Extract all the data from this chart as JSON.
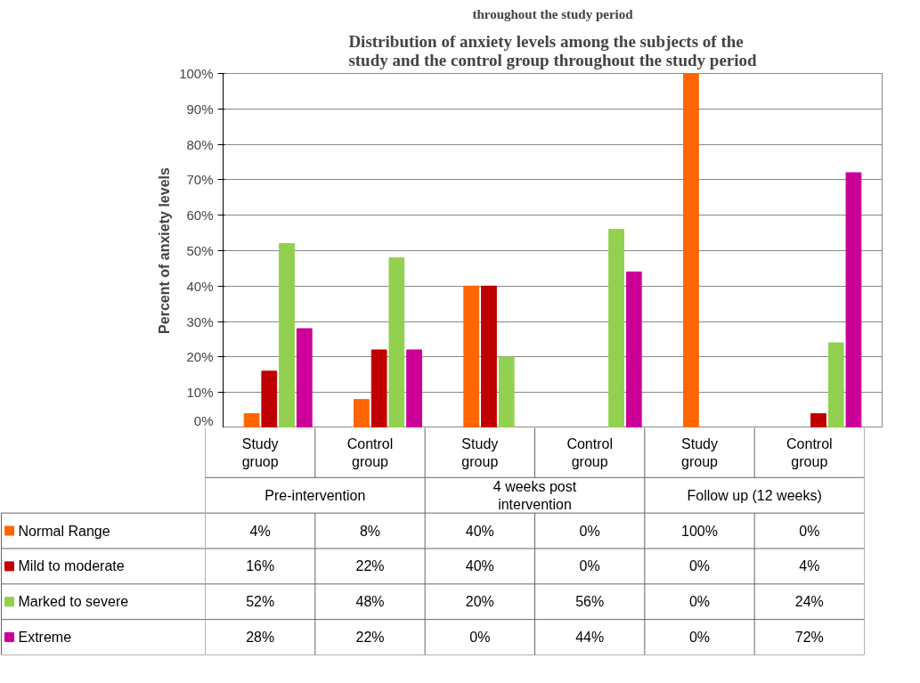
{
  "chart_data": {
    "type": "bar",
    "title": "Distribution of anxiety levels among the subjects of the study and the control group throughout the study period",
    "subtitle": "throughout the study period",
    "annotations": [
      "Pre-intervention",
      "4 weeks post intervention",
      "Follow up (12 weeks)"
    ],
    "categories": [
      "Study gruop",
      "Control group",
      "Study group",
      "Control group",
      "Study group",
      "Control group"
    ],
    "ylabel": "Percent of anxiety levels",
    "ylim": [
      0,
      100
    ],
    "yticks": [
      {
        "value": 0,
        "label": "0%"
      },
      {
        "value": 10,
        "label": "10%"
      },
      {
        "value": 20,
        "label": "20%"
      },
      {
        "value": 30,
        "label": "30%"
      },
      {
        "value": 40,
        "label": "40%"
      },
      {
        "value": 50,
        "label": "50%"
      },
      {
        "value": 60,
        "label": "60%"
      },
      {
        "value": 70,
        "label": "70%"
      },
      {
        "value": 80,
        "label": "80%"
      },
      {
        "value": 90,
        "label": "90%"
      },
      {
        "value": 100,
        "label": "100%"
      }
    ],
    "grid": "y",
    "legend": "bottom",
    "series": [
      {
        "name": "Normal Range",
        "color": "#ff6600",
        "values": [
          4,
          8,
          40,
          0,
          100,
          0
        ],
        "value_labels": [
          "4%",
          "8%",
          "40%",
          "0%",
          "100%",
          "0%"
        ]
      },
      {
        "name": "Mild to moderate",
        "color": "#c00000",
        "values": [
          16,
          22,
          40,
          0,
          0,
          4
        ],
        "value_labels": [
          "16%",
          "22%",
          "40%",
          "0%",
          "0%",
          "4%"
        ]
      },
      {
        "name": "Marked to severe",
        "color": "#92d050",
        "values": [
          52,
          48,
          20,
          56,
          0,
          24
        ],
        "value_labels": [
          "52%",
          "48%",
          "20%",
          "56%",
          "0%",
          "24%"
        ]
      },
      {
        "name": "Extreme",
        "color": "#cc0099",
        "values": [
          28,
          22,
          0,
          44,
          0,
          72
        ],
        "value_labels": [
          "28%",
          "22%",
          "0%",
          "44%",
          "0%",
          "72%"
        ]
      }
    ]
  }
}
